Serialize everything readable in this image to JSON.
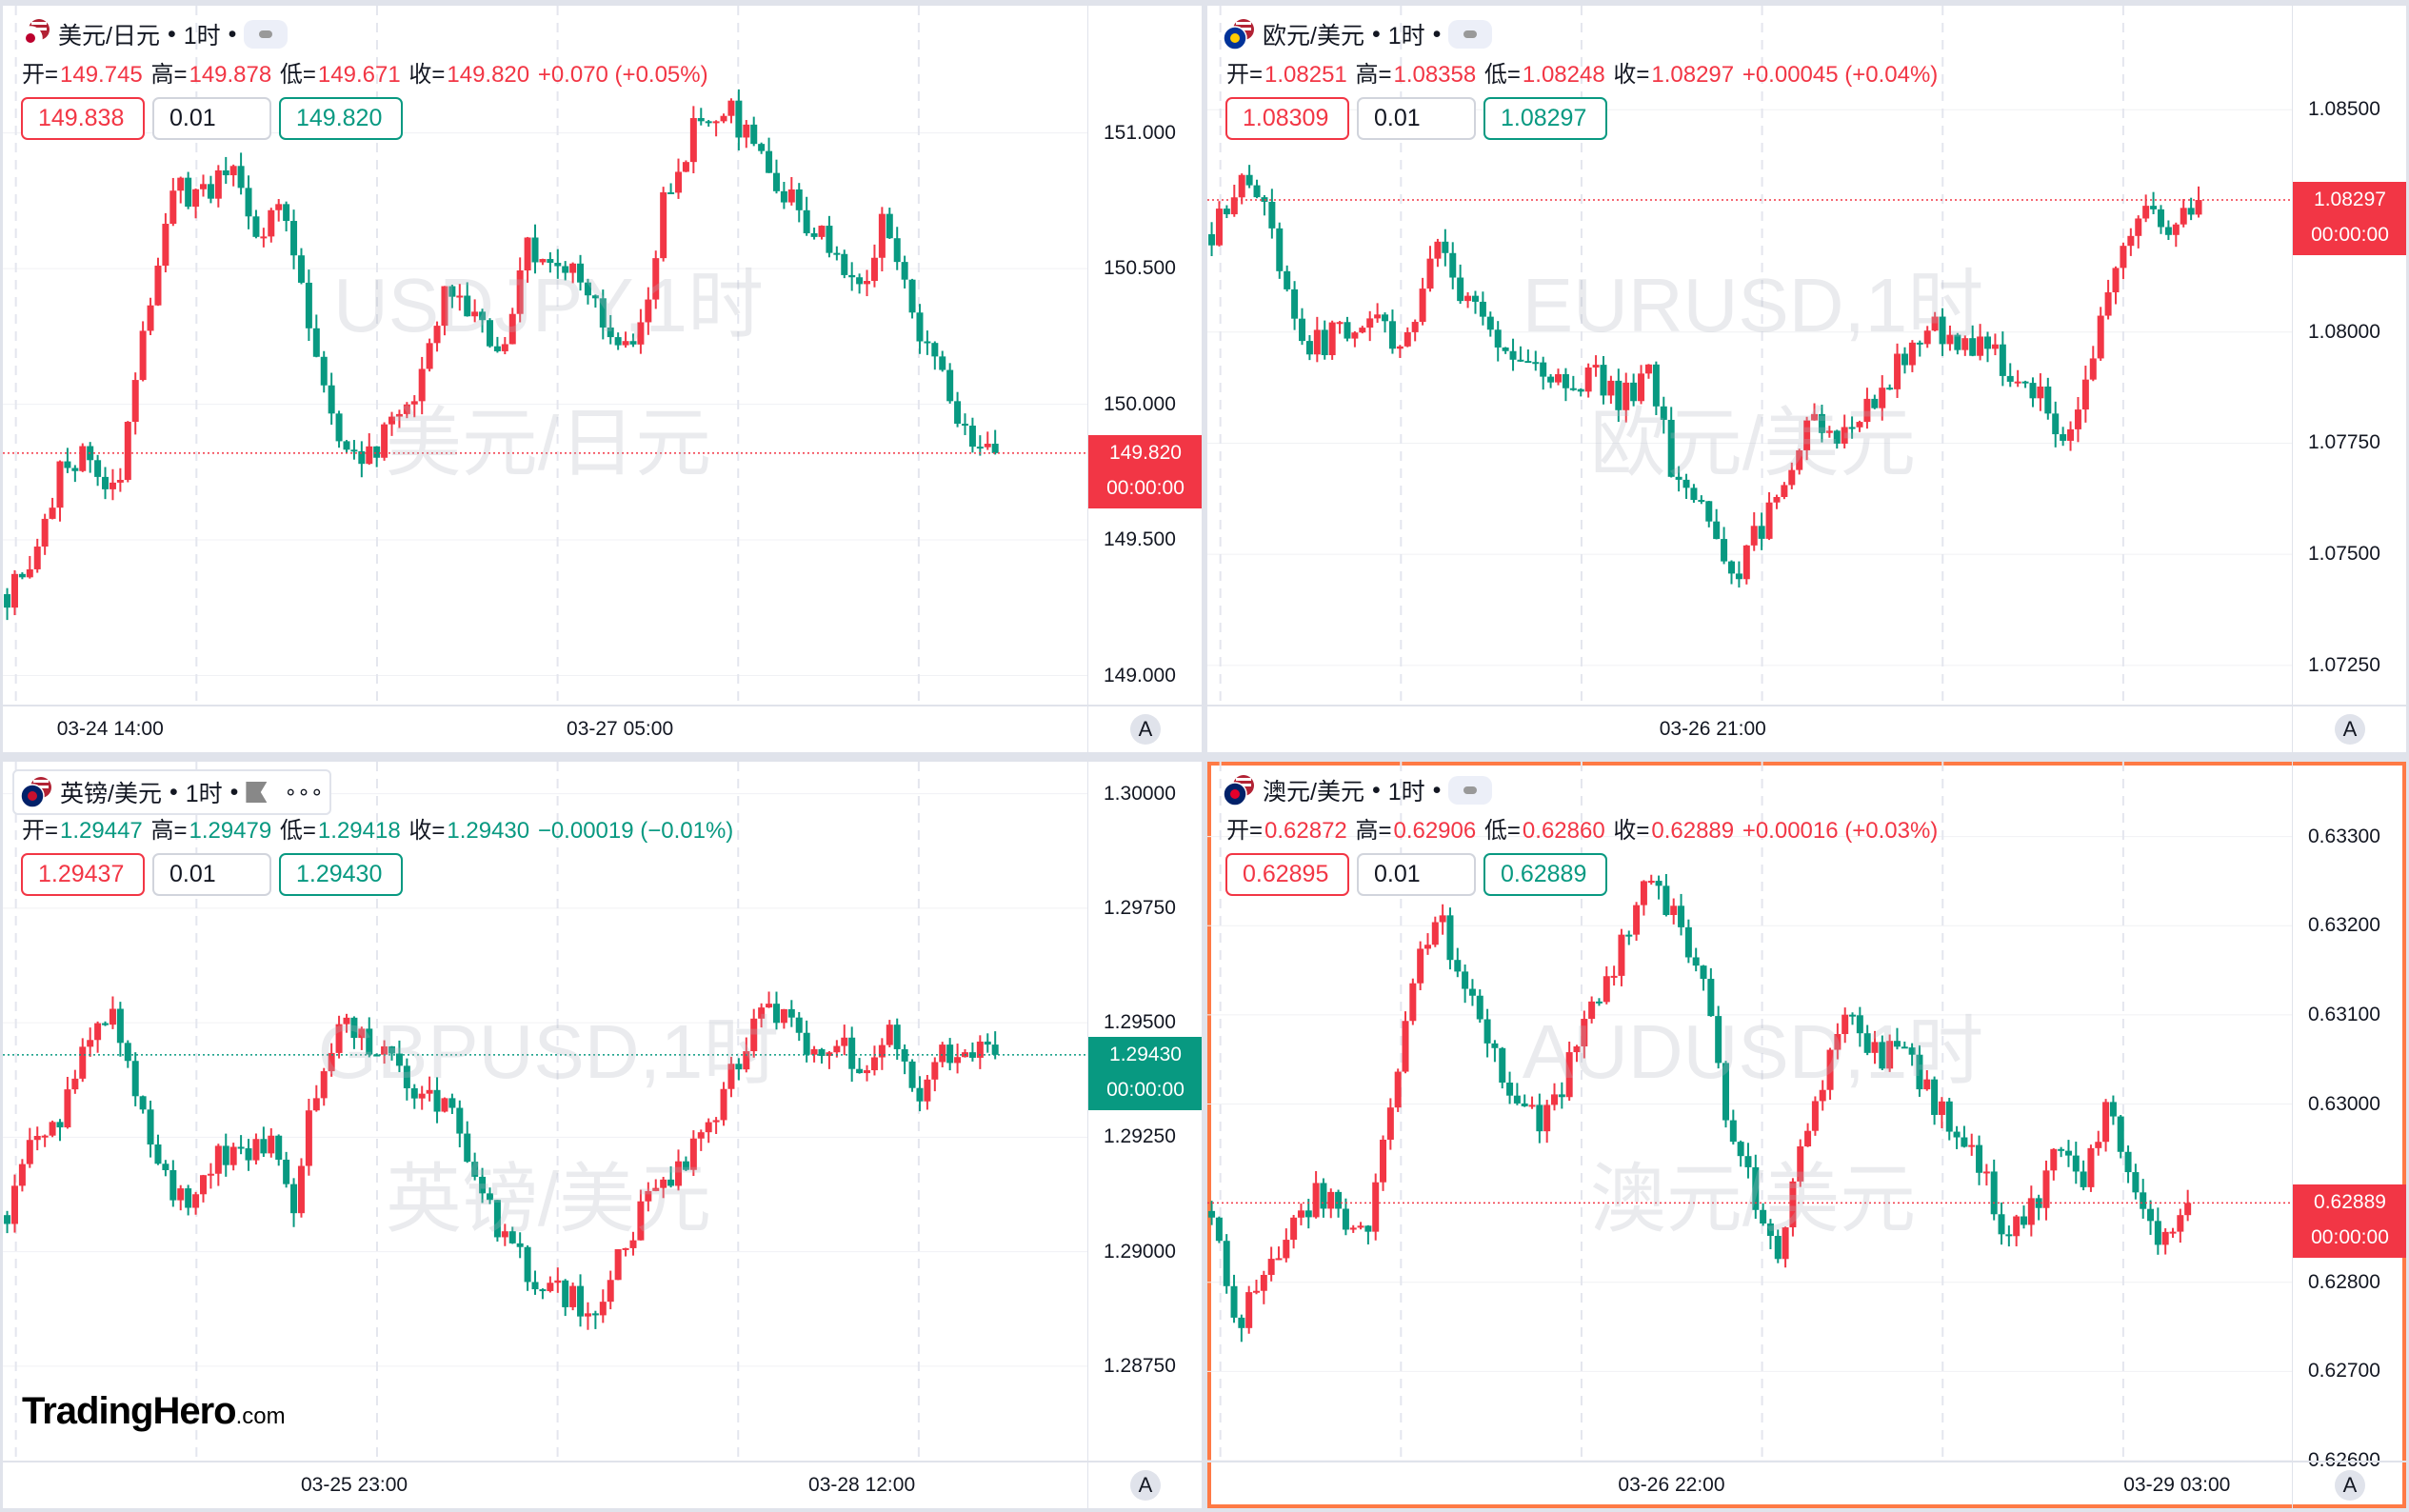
{
  "colors": {
    "up": "#f23645",
    "down": "#089981",
    "selected_border": "#ff7a45"
  },
  "time_label": "00:00:00",
  "logo": {
    "name": "TradingHero",
    "suffix": ".com"
  },
  "auto_scale_label": "A",
  "panes": [
    {
      "symbol": "美元/日元",
      "interval": "1时",
      "flag": "us-jp-flag-icon",
      "watermark_symbol": "USDJPY,1时",
      "watermark_name": "美元/日元",
      "ohlc": {
        "o_label": "开=",
        "o": "149.745",
        "h_label": "高=",
        "h": "149.878",
        "l_label": "低=",
        "l": "149.671",
        "c_label": "收=",
        "c": "149.820",
        "change": "+0.070 (+0.05%)",
        "direction": "up"
      },
      "sell": "149.838",
      "qty": "0.01",
      "buy": "149.820",
      "last": 149.82,
      "last_label": "149.820",
      "last_color": "#f23645",
      "price_ticks": [
        "151.000",
        "150.500",
        "150.000",
        "149.500",
        "149.000"
      ],
      "yrange": [
        148.893,
        151.469
      ],
      "time_ticks": [
        {
          "label": "03-24 14:00",
          "pos": 0.099
        },
        {
          "label": "03-27 05:00",
          "pos": 0.569
        }
      ],
      "chart_data": {
        "type": "candlestick",
        "closes": [
          149.3,
          149.4,
          149.8,
          149.8,
          149.7,
          150.3,
          150.8,
          150.75,
          150.9,
          150.6,
          150.7,
          150.3,
          149.9,
          149.8,
          149.9,
          150.1,
          150.4,
          150.3,
          150.2,
          150.6,
          150.5,
          150.5,
          150.2,
          150.2,
          150.8,
          151.0,
          151.1,
          151.0,
          150.8,
          150.7,
          150.6,
          150.4,
          150.7,
          150.3,
          150.1,
          149.9,
          149.82
        ]
      }
    },
    {
      "symbol": "欧元/美元",
      "interval": "1时",
      "flag": "eu-us-flag-icon",
      "watermark_symbol": "EURUSD,1时",
      "watermark_name": "欧元/美元",
      "ohlc": {
        "o_label": "开=",
        "o": "1.08251",
        "h_label": "高=",
        "h": "1.08358",
        "l_label": "低=",
        "l": "1.08248",
        "c_label": "收=",
        "c": "1.08297",
        "change": "+0.00045 (+0.04%)",
        "direction": "up"
      },
      "sell": "1.08309",
      "qty": "0.01",
      "buy": "1.08297",
      "last": 1.08297,
      "last_label": "1.08297",
      "last_color": "#f23645",
      "price_ticks": [
        "1.08500",
        "1.08000",
        "1.07750",
        "1.07500",
        "1.07250"
      ],
      "yrange": [
        1.07162,
        1.08734
      ],
      "time_ticks": [
        {
          "label": "03-26 21:00",
          "pos": 0.466
        }
      ],
      "chart_data": {
        "type": "candlestick",
        "closes": [
          1.0822,
          1.0835,
          1.083,
          1.08,
          1.0797,
          1.0802,
          1.0802,
          1.0795,
          1.082,
          1.081,
          1.08,
          1.0793,
          1.079,
          1.0787,
          1.079,
          1.0785,
          1.079,
          1.0765,
          1.076,
          1.0745,
          1.0755,
          1.077,
          1.078,
          1.0775,
          1.0785,
          1.0792,
          1.08,
          1.08,
          1.0797,
          1.0793,
          1.0787,
          1.0775,
          1.079,
          1.0815,
          1.0827,
          1.0825,
          1.08297
        ]
      }
    },
    {
      "symbol": "英镑/美元",
      "interval": "1时",
      "flag": "gb-us-flag-icon",
      "watermark_symbol": "GBPUSD,1时",
      "watermark_name": "英镑/美元",
      "more": "∘∘∘",
      "ohlc": {
        "o_label": "开=",
        "o": "1.29447",
        "h_label": "高=",
        "h": "1.29479",
        "l_label": "低=",
        "l": "1.29418",
        "c_label": "收=",
        "c": "1.29430",
        "change": "−0.00019 (−0.01%)",
        "direction": "down"
      },
      "sell": "1.29437",
      "qty": "0.01",
      "buy": "1.29430",
      "last": 1.2943,
      "last_label": "1.29430",
      "last_color": "#089981",
      "price_ticks": [
        "1.30000",
        "1.29750",
        "1.29500",
        "1.29250",
        "1.29000",
        "1.28750"
      ],
      "yrange": [
        1.28544,
        1.3007
      ],
      "time_ticks": [
        {
          "label": "03-25 23:00",
          "pos": 0.324
        },
        {
          "label": "03-28 12:00",
          "pos": 0.792
        }
      ],
      "chart_data": {
        "type": "candlestick",
        "closes": [
          1.2908,
          1.2925,
          1.293,
          1.2945,
          1.2955,
          1.2935,
          1.2915,
          1.291,
          1.2922,
          1.292,
          1.2925,
          1.291,
          1.294,
          1.295,
          1.2945,
          1.294,
          1.2935,
          1.293,
          1.2915,
          1.2905,
          1.2895,
          1.2893,
          1.2888,
          1.289,
          1.2905,
          1.2915,
          1.292,
          1.2925,
          1.294,
          1.2955,
          1.295,
          1.2945,
          1.2945,
          1.294,
          1.2948,
          1.2935,
          1.2945,
          1.2943,
          1.2943
        ]
      }
    },
    {
      "symbol": "澳元/美元",
      "interval": "1时",
      "flag": "au-us-flag-icon",
      "watermark_symbol": "AUDUSD,1时",
      "watermark_name": "澳元/美元",
      "ohlc": {
        "o_label": "开=",
        "o": "0.62872",
        "h_label": "高=",
        "h": "0.62906",
        "l_label": "低=",
        "l": "0.62860",
        "c_label": "收=",
        "c": "0.62889",
        "change": "+0.00016 (+0.03%)",
        "direction": "up"
      },
      "sell": "0.62895",
      "qty": "0.01",
      "buy": "0.62889",
      "last": 0.62889,
      "last_label": "0.62889",
      "last_color": "#f23645",
      "price_ticks": [
        "0.63300",
        "0.63200",
        "0.63100",
        "0.63000",
        "0.62800",
        "0.62700",
        "0.62600"
      ],
      "yrange": [
        0.626,
        0.63384
      ],
      "time_ticks": [
        {
          "label": "03-26 22:00",
          "pos": 0.428
        },
        {
          "label": "03-29 03:00",
          "pos": 0.894
        }
      ],
      "chart_data": {
        "type": "candlestick",
        "closes": [
          0.6288,
          0.6275,
          0.628,
          0.6285,
          0.629,
          0.6288,
          0.6285,
          0.63,
          0.6318,
          0.632,
          0.6312,
          0.6305,
          0.63,
          0.6298,
          0.6305,
          0.6312,
          0.6318,
          0.6325,
          0.6322,
          0.6315,
          0.63,
          0.629,
          0.6283,
          0.6295,
          0.6305,
          0.631,
          0.6305,
          0.6307,
          0.63,
          0.6298,
          0.6293,
          0.6285,
          0.6288,
          0.6295,
          0.6292,
          0.63,
          0.629,
          0.6285,
          0.62889
        ]
      }
    }
  ]
}
